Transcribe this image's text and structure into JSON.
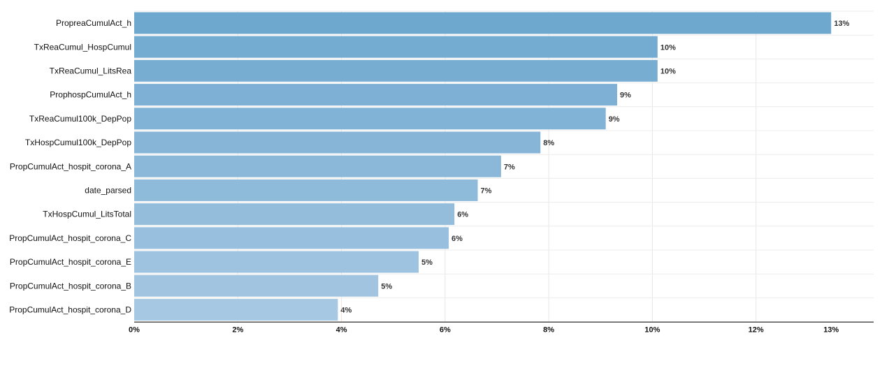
{
  "chart_data": {
    "type": "bar",
    "orientation": "horizontal",
    "categories": [
      "Proprea​CumulAct_h",
      "TxReaCumul_HospCumul",
      "TxReaCumul_LitsRea",
      "ProphospCumulAct_h",
      "TxReaCumul100k_DepPop",
      "TxHospCumul100k_DepPop",
      "PropCumulAct_hospit_corona_A",
      "date_parsed",
      "TxHospCumul_LitsTotal",
      "PropCumulAct_hospit_corona_C",
      "PropCumulAct_hospit_corona_E",
      "PropCumulAct_hospit_corona_B",
      "PropCumulAct_hospit_corona_D"
    ],
    "values": [
      13.45,
      10.1,
      10.1,
      9.32,
      9.1,
      7.84,
      7.08,
      6.63,
      6.18,
      6.07,
      5.49,
      4.71,
      3.93
    ],
    "value_labels": [
      "13%",
      "10%",
      "10%",
      "9%",
      "9%",
      "8%",
      "7%",
      "7%",
      "6%",
      "6%",
      "5%",
      "5%",
      "4%"
    ],
    "xlim": [
      0,
      14.27
    ],
    "x_ticks": [
      0,
      2,
      4,
      6,
      8,
      10,
      12,
      13.45
    ],
    "x_tick_labels": [
      "0%",
      "2%",
      "4%",
      "6%",
      "8%",
      "10%",
      "12%",
      "13%"
    ],
    "grid": true,
    "legend": "none",
    "colors": {
      "bar_top": "#6fa8cf",
      "bar_bottom": "#a6c8e3"
    }
  }
}
